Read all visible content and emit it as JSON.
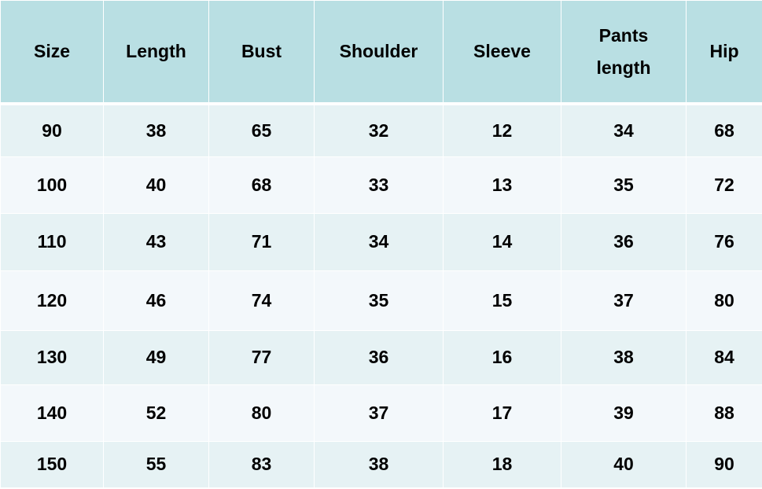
{
  "table": {
    "headers": [
      "Size",
      "Length",
      "Bust",
      "Shoulder",
      "Sleeve",
      "Pants length",
      "Hip"
    ],
    "rows": [
      [
        "90",
        "38",
        "65",
        "32",
        "12",
        "34",
        "68"
      ],
      [
        "100",
        "40",
        "68",
        "33",
        "13",
        "35",
        "72"
      ],
      [
        "110",
        "43",
        "71",
        "34",
        "14",
        "36",
        "76"
      ],
      [
        "120",
        "46",
        "74",
        "35",
        "15",
        "37",
        "80"
      ],
      [
        "130",
        "49",
        "77",
        "36",
        "16",
        "38",
        "84"
      ],
      [
        "140",
        "52",
        "80",
        "37",
        "17",
        "39",
        "88"
      ],
      [
        "150",
        "55",
        "83",
        "38",
        "18",
        "40",
        "90"
      ]
    ]
  },
  "colors": {
    "header_bg": "#b9dfe3",
    "row_odd": "#e6f2f4",
    "row_even": "#f3f8fb"
  }
}
